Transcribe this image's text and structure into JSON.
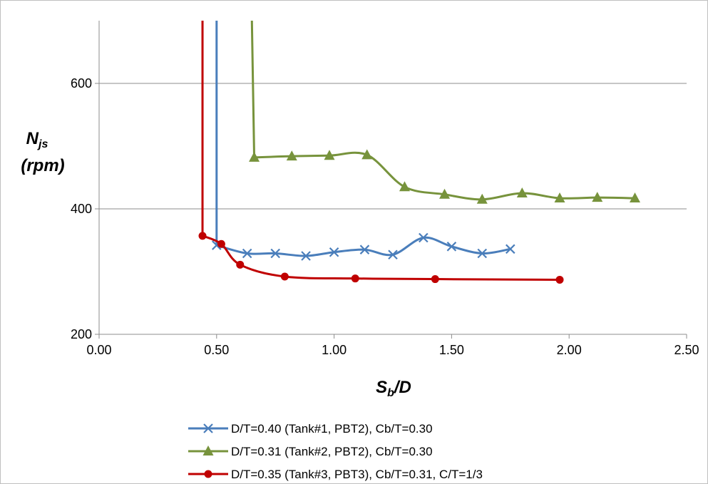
{
  "chart_data": {
    "type": "line",
    "title": "",
    "xlabel": {
      "main": "S",
      "sub": "b",
      "rest": "/D"
    },
    "ylabel": {
      "line1_main": "N",
      "line1_sub": "js",
      "line2": "(rpm)"
    },
    "xlim": [
      0,
      2.5
    ],
    "ylim": [
      200,
      700
    ],
    "xticks": [
      "0.00",
      "0.50",
      "1.00",
      "1.50",
      "2.00",
      "2.50"
    ],
    "yticks": [
      "200",
      "400",
      "600"
    ],
    "grid": "horizontal",
    "legend_position": "bottom",
    "series": [
      {
        "name": "D/T=0.40 (Tank#1, PBT2), Cb/T=0.30",
        "color": "#4a7ebb",
        "marker": "x",
        "entry": [
          [
            0.5,
            700
          ],
          [
            0.5,
            342
          ]
        ],
        "points": [
          [
            0.5,
            342
          ],
          [
            0.63,
            329
          ],
          [
            0.75,
            329
          ],
          [
            0.88,
            325
          ],
          [
            1.0,
            331
          ],
          [
            1.13,
            335
          ],
          [
            1.25,
            327
          ],
          [
            1.38,
            354
          ],
          [
            1.5,
            340
          ],
          [
            1.63,
            329
          ],
          [
            1.75,
            336
          ]
        ]
      },
      {
        "name": "D/T=0.31 (Tank#2, PBT2), Cb/T=0.30",
        "color": "#77933c",
        "marker": "triangle",
        "entry": [
          [
            0.65,
            700
          ],
          [
            0.66,
            482
          ]
        ],
        "points": [
          [
            0.66,
            482
          ],
          [
            0.82,
            484
          ],
          [
            0.98,
            485
          ],
          [
            1.14,
            486
          ],
          [
            1.3,
            435
          ],
          [
            1.47,
            423
          ],
          [
            1.63,
            415
          ],
          [
            1.8,
            425
          ],
          [
            1.96,
            417
          ],
          [
            2.12,
            418
          ],
          [
            2.28,
            417
          ]
        ]
      },
      {
        "name": "D/T=0.35 (Tank#3, PBT3), Cb/T=0.31, C/T=1/3",
        "color": "#c00000",
        "marker": "circle",
        "entry": [
          [
            0.44,
            700
          ],
          [
            0.44,
            357
          ]
        ],
        "points": [
          [
            0.44,
            357
          ],
          [
            0.52,
            344
          ],
          [
            0.6,
            311
          ],
          [
            0.79,
            292
          ],
          [
            1.09,
            289
          ],
          [
            1.43,
            288
          ],
          [
            1.96,
            287
          ]
        ]
      }
    ]
  }
}
